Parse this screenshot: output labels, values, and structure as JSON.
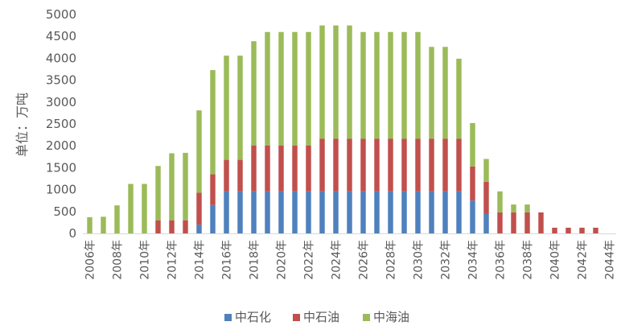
{
  "chart_data": {
    "type": "bar",
    "stacked": true,
    "title": "",
    "xlabel": "",
    "ylabel": "单位：万吨",
    "ylim": [
      0,
      5000
    ],
    "yticks": [
      0,
      500,
      1000,
      1500,
      2000,
      2500,
      3000,
      3500,
      4000,
      4500,
      5000
    ],
    "categories": [
      "2006年",
      "2007年",
      "2008年",
      "2009年",
      "2010年",
      "2011年",
      "2012年",
      "2013年",
      "2014年",
      "2015年",
      "2016年",
      "2017年",
      "2018年",
      "2019年",
      "2020年",
      "2021年",
      "2022年",
      "2023年",
      "2024年",
      "2025年",
      "2026年",
      "2027年",
      "2028年",
      "2029年",
      "2030年",
      "2031年",
      "2032年",
      "2033年",
      "2034年",
      "2035年",
      "2036年",
      "2037年",
      "2038年",
      "2039年",
      "2040年",
      "2041年",
      "2042年",
      "2043年",
      "2044年"
    ],
    "xtick_labels": [
      "2006年",
      "2008年",
      "2010年",
      "2012年",
      "2014年",
      "2016年",
      "2018年",
      "2020年",
      "2022年",
      "2024年",
      "2026年",
      "2028年",
      "2030年",
      "2032年",
      "2034年",
      "2036年",
      "2038年",
      "2040年",
      "2042年",
      "2044年"
    ],
    "series": [
      {
        "name": "中石化",
        "color": "#4F81BD",
        "values": [
          0,
          0,
          0,
          0,
          0,
          0,
          0,
          0,
          200,
          650,
          960,
          960,
          960,
          960,
          960,
          960,
          960,
          960,
          960,
          960,
          960,
          960,
          960,
          960,
          960,
          960,
          960,
          960,
          750,
          450,
          0,
          0,
          0,
          0,
          0,
          0,
          0,
          0,
          0
        ]
      },
      {
        "name": "中石油",
        "color": "#C0504D",
        "values": [
          0,
          0,
          0,
          0,
          0,
          300,
          300,
          300,
          730,
          700,
          720,
          720,
          1050,
          1050,
          1050,
          1050,
          1050,
          1200,
          1200,
          1200,
          1200,
          1200,
          1200,
          1200,
          1200,
          1200,
          1200,
          1200,
          780,
          730,
          480,
          480,
          480,
          480,
          130,
          130,
          130,
          130,
          0
        ]
      },
      {
        "name": "中海油",
        "color": "#9BBB59",
        "values": [
          370,
          380,
          640,
          1130,
          1130,
          1240,
          1530,
          1540,
          1880,
          2380,
          2380,
          2380,
          2380,
          2590,
          2590,
          2590,
          2590,
          2590,
          2590,
          2590,
          2440,
          2440,
          2440,
          2440,
          2440,
          2100,
          2100,
          1830,
          990,
          520,
          480,
          180,
          180,
          0,
          0,
          0,
          0,
          0,
          0
        ]
      }
    ],
    "legend": {
      "position": "bottom"
    },
    "grid": false
  }
}
